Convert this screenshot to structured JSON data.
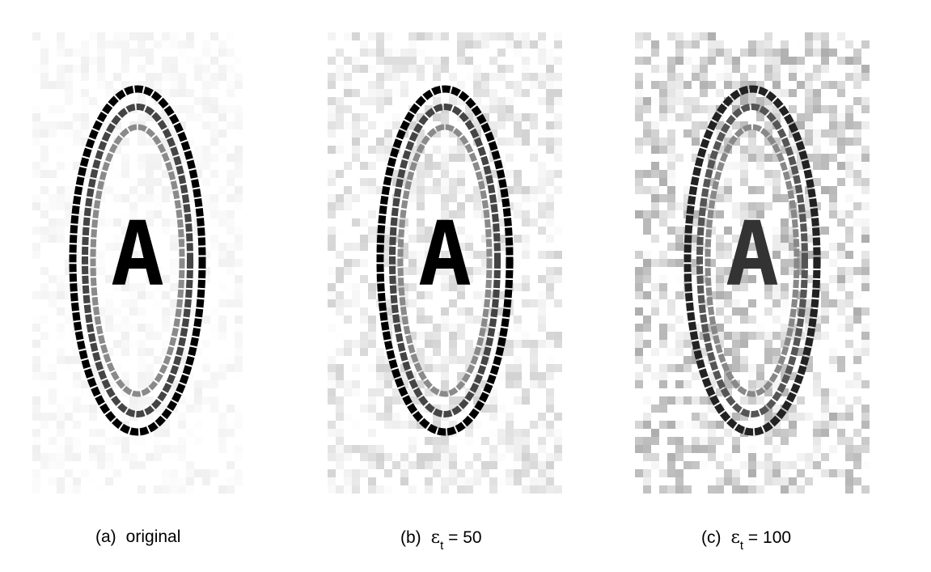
{
  "figure": {
    "panels": [
      {
        "id": "a",
        "label": "(a)",
        "text": "original",
        "letter": "A",
        "noise": 0.0
      },
      {
        "id": "b",
        "label": "(b)",
        "symbol": "ε",
        "subscript": "t",
        "equals": "= 50",
        "letter": "A",
        "noise": 50
      },
      {
        "id": "c",
        "label": "(c)",
        "symbol": "ε",
        "subscript": "t",
        "equals": "= 100",
        "letter": "A",
        "noise": 100
      }
    ]
  }
}
